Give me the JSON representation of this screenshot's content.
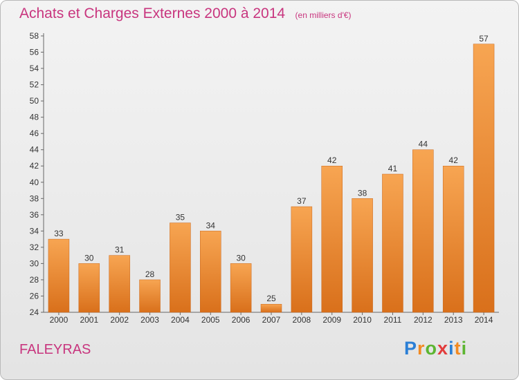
{
  "title": "Achats et Charges Externes 2000 à 2014",
  "unit_note": "(en milliers d'€)",
  "commune": "FALEYRAS",
  "logo": {
    "text": "Proxiti",
    "letters": [
      "P",
      "r",
      "o",
      "x",
      "i",
      "t",
      "i"
    ],
    "colors": [
      "#2b7fd6",
      "#f28a22",
      "#5cb531",
      "#e23c3c",
      "#2b7fd6",
      "#f28a22",
      "#5cb531"
    ]
  },
  "colors": {
    "bar_top": "#f7a552",
    "bar_bottom": "#d9701b",
    "title": "#c8357e"
  },
  "chart_data": {
    "type": "bar",
    "categories": [
      "2000",
      "2001",
      "2002",
      "2003",
      "2004",
      "2005",
      "2006",
      "2007",
      "2008",
      "2009",
      "2010",
      "2011",
      "2012",
      "2013",
      "2014"
    ],
    "values": [
      33,
      30,
      31,
      28,
      35,
      34,
      30,
      25,
      37,
      42,
      38,
      41,
      44,
      42,
      57
    ],
    "ylim": [
      24,
      58
    ],
    "yticks": [
      24,
      26,
      28,
      30,
      32,
      34,
      36,
      38,
      40,
      42,
      44,
      46,
      48,
      50,
      52,
      54,
      56,
      58
    ],
    "grid": false,
    "data_labels": true
  }
}
